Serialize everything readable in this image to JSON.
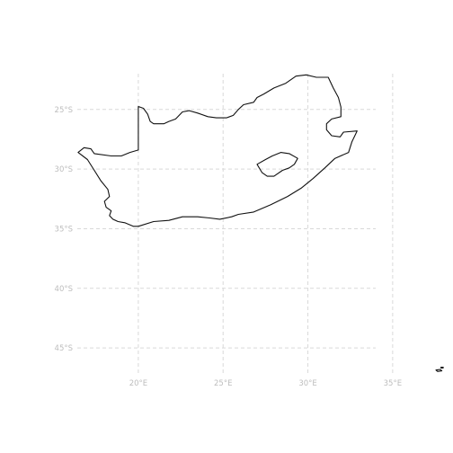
{
  "map": {
    "projection": "equirectangular",
    "background": "#ffffff",
    "grid_color": "#d9d9d9",
    "label_color": "#bdbdbd",
    "outline_color": "#111111",
    "grid_style": "dashed",
    "lon_range": [
      16.4,
      34.0
    ],
    "lat_range": [
      -47.1,
      -22.0
    ],
    "lon_ticks": [
      {
        "value": 20,
        "label": "20°E"
      },
      {
        "value": 25,
        "label": "25°E"
      },
      {
        "value": 30,
        "label": "30°E"
      },
      {
        "value": 35,
        "label": "35°E"
      }
    ],
    "lat_ticks": [
      {
        "value": -25,
        "label": "25°S"
      },
      {
        "value": -30,
        "label": "30°S"
      },
      {
        "value": -35,
        "label": "35°S"
      },
      {
        "value": -40,
        "label": "40°S"
      },
      {
        "value": -45,
        "label": "45°S"
      }
    ],
    "features": [
      {
        "name": "south-africa",
        "coords": [
          [
            20.0,
            -24.75
          ],
          [
            20.3,
            -24.9
          ],
          [
            20.55,
            -25.4
          ],
          [
            20.7,
            -26.0
          ],
          [
            20.9,
            -26.2
          ],
          [
            21.5,
            -26.2
          ],
          [
            21.8,
            -26.0
          ],
          [
            22.2,
            -25.8
          ],
          [
            22.6,
            -25.2
          ],
          [
            23.0,
            -25.1
          ],
          [
            23.5,
            -25.3
          ],
          [
            24.1,
            -25.6
          ],
          [
            24.6,
            -25.7
          ],
          [
            25.2,
            -25.7
          ],
          [
            25.6,
            -25.5
          ],
          [
            25.9,
            -25.0
          ],
          [
            26.2,
            -24.6
          ],
          [
            26.8,
            -24.4
          ],
          [
            27.0,
            -24.0
          ],
          [
            27.4,
            -23.7
          ],
          [
            28.0,
            -23.2
          ],
          [
            28.7,
            -22.8
          ],
          [
            29.3,
            -22.2
          ],
          [
            29.9,
            -22.1
          ],
          [
            30.5,
            -22.3
          ],
          [
            31.2,
            -22.3
          ],
          [
            31.5,
            -23.2
          ],
          [
            31.8,
            -24.0
          ],
          [
            31.95,
            -24.8
          ],
          [
            31.95,
            -25.6
          ],
          [
            31.4,
            -25.8
          ],
          [
            31.1,
            -26.2
          ],
          [
            31.1,
            -26.7
          ],
          [
            31.4,
            -27.2
          ],
          [
            31.9,
            -27.3
          ],
          [
            32.1,
            -26.9
          ],
          [
            32.9,
            -26.8
          ],
          [
            32.6,
            -27.7
          ],
          [
            32.4,
            -28.6
          ],
          [
            31.6,
            -29.1
          ],
          [
            31.0,
            -29.9
          ],
          [
            30.3,
            -30.8
          ],
          [
            29.6,
            -31.6
          ],
          [
            28.8,
            -32.3
          ],
          [
            27.8,
            -33.0
          ],
          [
            26.8,
            -33.6
          ],
          [
            25.9,
            -33.8
          ],
          [
            25.5,
            -34.0
          ],
          [
            24.8,
            -34.2
          ],
          [
            24.2,
            -34.1
          ],
          [
            23.5,
            -34.0
          ],
          [
            22.6,
            -34.0
          ],
          [
            21.8,
            -34.3
          ],
          [
            20.9,
            -34.4
          ],
          [
            20.0,
            -34.8
          ],
          [
            19.7,
            -34.8
          ],
          [
            19.2,
            -34.5
          ],
          [
            18.8,
            -34.4
          ],
          [
            18.5,
            -34.2
          ],
          [
            18.3,
            -33.9
          ],
          [
            18.4,
            -33.5
          ],
          [
            18.1,
            -33.2
          ],
          [
            18.0,
            -32.7
          ],
          [
            18.3,
            -32.3
          ],
          [
            18.2,
            -31.7
          ],
          [
            17.8,
            -31.0
          ],
          [
            17.4,
            -30.1
          ],
          [
            17.0,
            -29.2
          ],
          [
            16.45,
            -28.6
          ],
          [
            16.8,
            -28.2
          ],
          [
            17.2,
            -28.3
          ],
          [
            17.4,
            -28.7
          ],
          [
            18.4,
            -28.9
          ],
          [
            19.0,
            -28.9
          ],
          [
            19.5,
            -28.6
          ],
          [
            20.0,
            -28.4
          ],
          [
            20.0,
            -24.75
          ]
        ]
      },
      {
        "name": "lesotho",
        "coords": [
          [
            27.0,
            -29.6
          ],
          [
            27.5,
            -29.2
          ],
          [
            27.9,
            -28.9
          ],
          [
            28.4,
            -28.6
          ],
          [
            28.9,
            -28.7
          ],
          [
            29.4,
            -29.1
          ],
          [
            29.2,
            -29.6
          ],
          [
            28.9,
            -29.9
          ],
          [
            28.5,
            -30.1
          ],
          [
            28.0,
            -30.6
          ],
          [
            27.6,
            -30.6
          ],
          [
            27.3,
            -30.3
          ],
          [
            27.0,
            -29.6
          ]
        ]
      },
      {
        "name": "prince-edward-islands",
        "coords": [
          [
            37.55,
            -46.85
          ],
          [
            37.8,
            -46.8
          ],
          [
            37.9,
            -46.92
          ],
          [
            37.65,
            -46.97
          ],
          [
            37.55,
            -46.85
          ]
        ]
      },
      {
        "name": "prince-edward-islands",
        "coords": [
          [
            37.85,
            -46.62
          ],
          [
            37.98,
            -46.62
          ],
          [
            37.98,
            -46.68
          ],
          [
            37.85,
            -46.68
          ],
          [
            37.85,
            -46.62
          ]
        ]
      }
    ]
  }
}
